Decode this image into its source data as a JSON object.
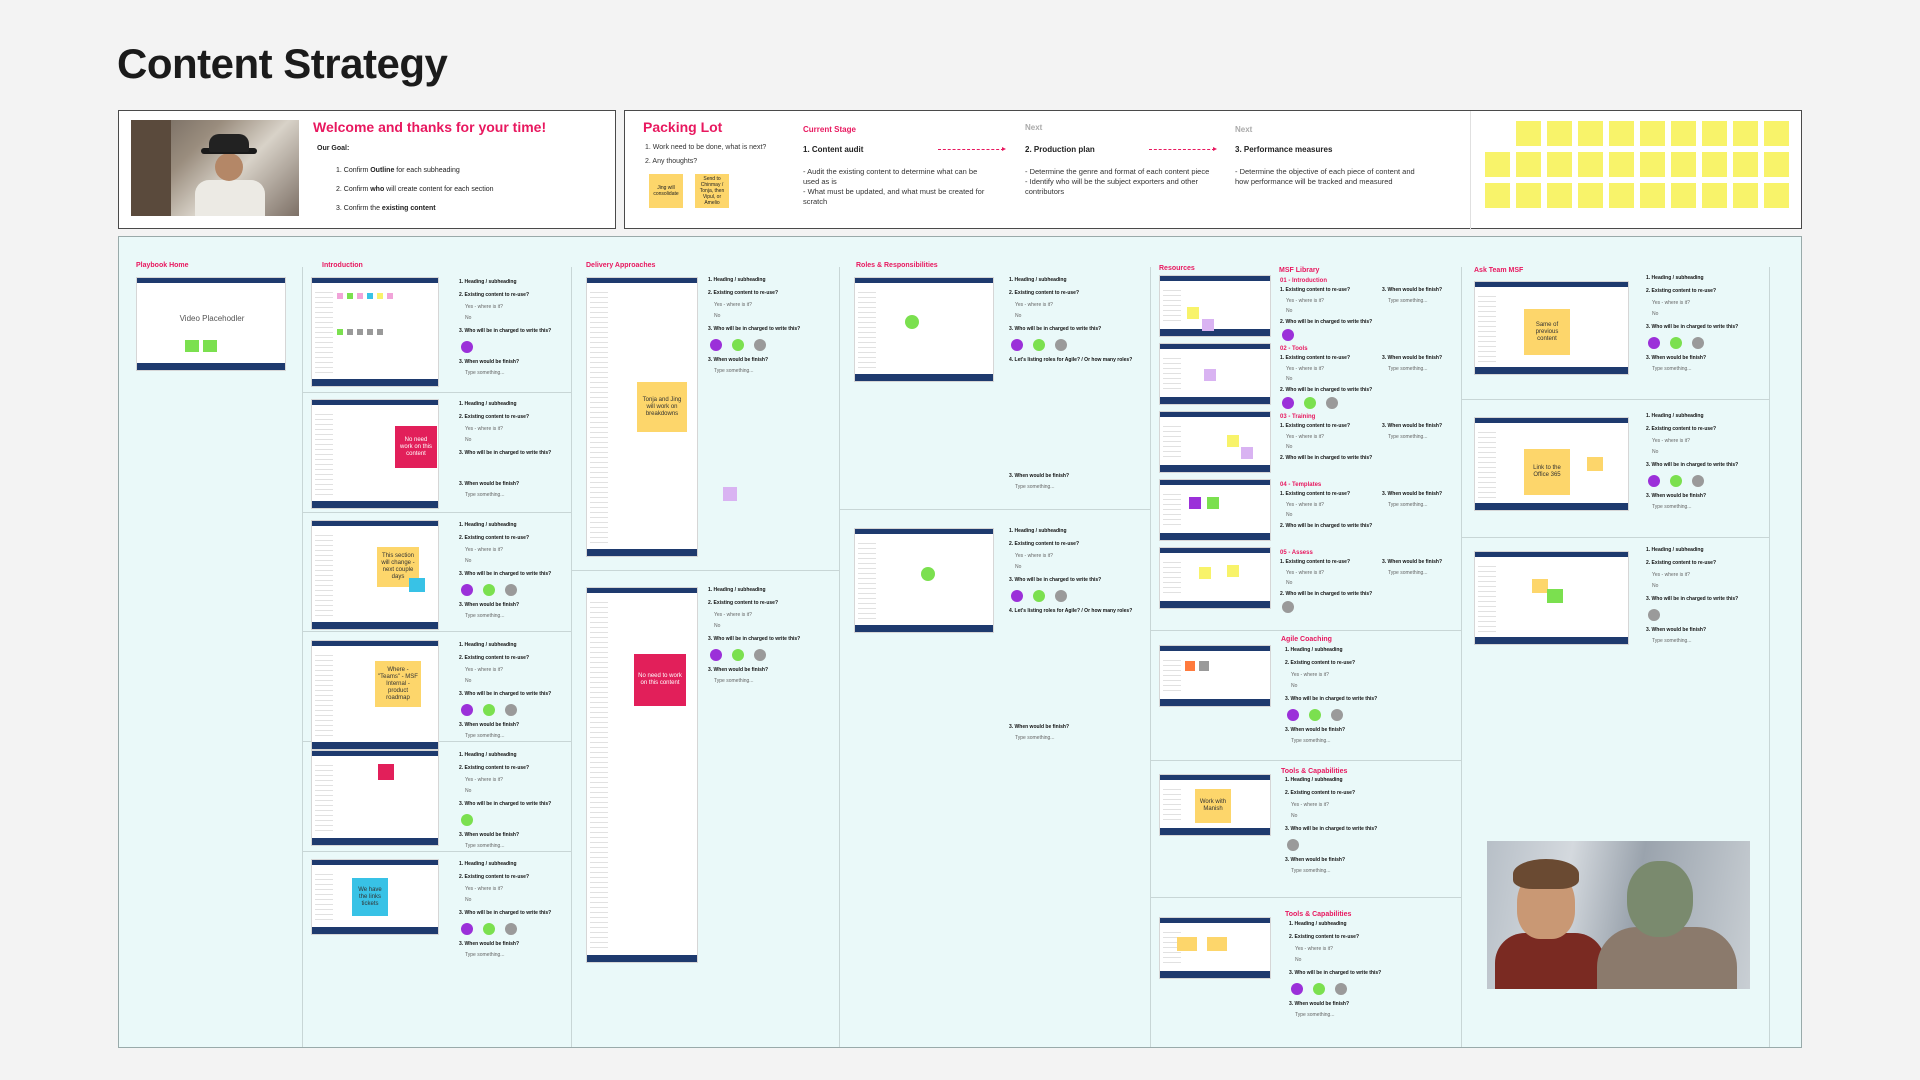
{
  "page_title": "Content Strategy",
  "welcome": {
    "title": "Welcome and thanks for your time!",
    "goal_label": "Our Goal:",
    "items": [
      {
        "pre": "1. Confirm ",
        "bold": "Outline",
        "post": " for each subheading"
      },
      {
        "pre": "2. Confirm ",
        "bold": "who",
        "post": " will create content for each section"
      },
      {
        "pre": "3. Confirm the ",
        "bold": "existing content",
        "post": ""
      }
    ]
  },
  "packing": {
    "title": "Packing Lot",
    "questions": [
      "1. Work need to be done, what is next?",
      "2. Any thoughts?"
    ],
    "notes": [
      "Jing will consolidate",
      "Send to Chinmay / Tonja, then Vipul, or Amelio"
    ],
    "stages": [
      {
        "head": "Current  Stage",
        "title": "1. Content audit",
        "text": [
          "- Audit the existing content to determine what can be used as is",
          "- What must be updated, and what must be created for scratch"
        ]
      },
      {
        "head": "Next",
        "title": "2. Production plan",
        "text": [
          "- Determine the genre and format of each content piece",
          "- Identify who will be the subject exporters and other contributors"
        ]
      },
      {
        "head": "Next",
        "title": "3. Performance measures",
        "text": [
          "- Determine the objective of each piece of content and how performance will be tracked and measured"
        ]
      }
    ]
  },
  "sections": {
    "playbook_home": "Playbook Home",
    "introduction": "Introduction",
    "delivery": "Delivery Approaches",
    "roles": "Roles & Responsibilities",
    "resources": "Resources",
    "msf_library": "MSF Library",
    "ask_team": "Ask Team MSF",
    "agile_coaching": "Agile Coaching",
    "tools_1": "Tools & Capabilities",
    "tools_2": "Tools & Capabilities"
  },
  "library_items": [
    "01 - Introduction",
    "02 - Tools",
    "03 - Training",
    "04 - Templates",
    "05 - Assess"
  ],
  "video_placeholder": "Video Placehodler",
  "question_set": {
    "q1": "1. Heading / subheading",
    "q2": "2. Existing content to re-use?",
    "yes": "Yes - where is it?",
    "no": "No",
    "q3": "3. Who will be in charged to write this?",
    "q4": "3. When would be finish?",
    "type": "Type something...",
    "roles_q": "4. Let's listing roles for Agile? / Or how many roles?",
    "lib_q1": "1. Existing content to re-use?",
    "lib_q2": "2. Who will be in charged to write this?",
    "lib_q3": "3. When would be finish?"
  },
  "stickies": {
    "no_need_intro": "No need work on this content",
    "section_change": "This section will change - next couple days",
    "where_teams": "Where - \"Teams\" - MSF Internal - product roadmap",
    "we_have_links": "We have the links tickets",
    "tonja_jing": "Tonja and Jing will work on breakdowns",
    "no_need_delivery": "No need to work on this content",
    "same_previous": "Same of previous content",
    "link_office": "Link to the Office 365",
    "work_with_manish": "Work with Manish"
  },
  "colors": {
    "accent": "#e8185f",
    "sticky_yellow": "#f8f36a",
    "note_orange": "#fdd66b",
    "board_bg": "#eaf9f9",
    "nav_blue": "#1e3a6e"
  }
}
